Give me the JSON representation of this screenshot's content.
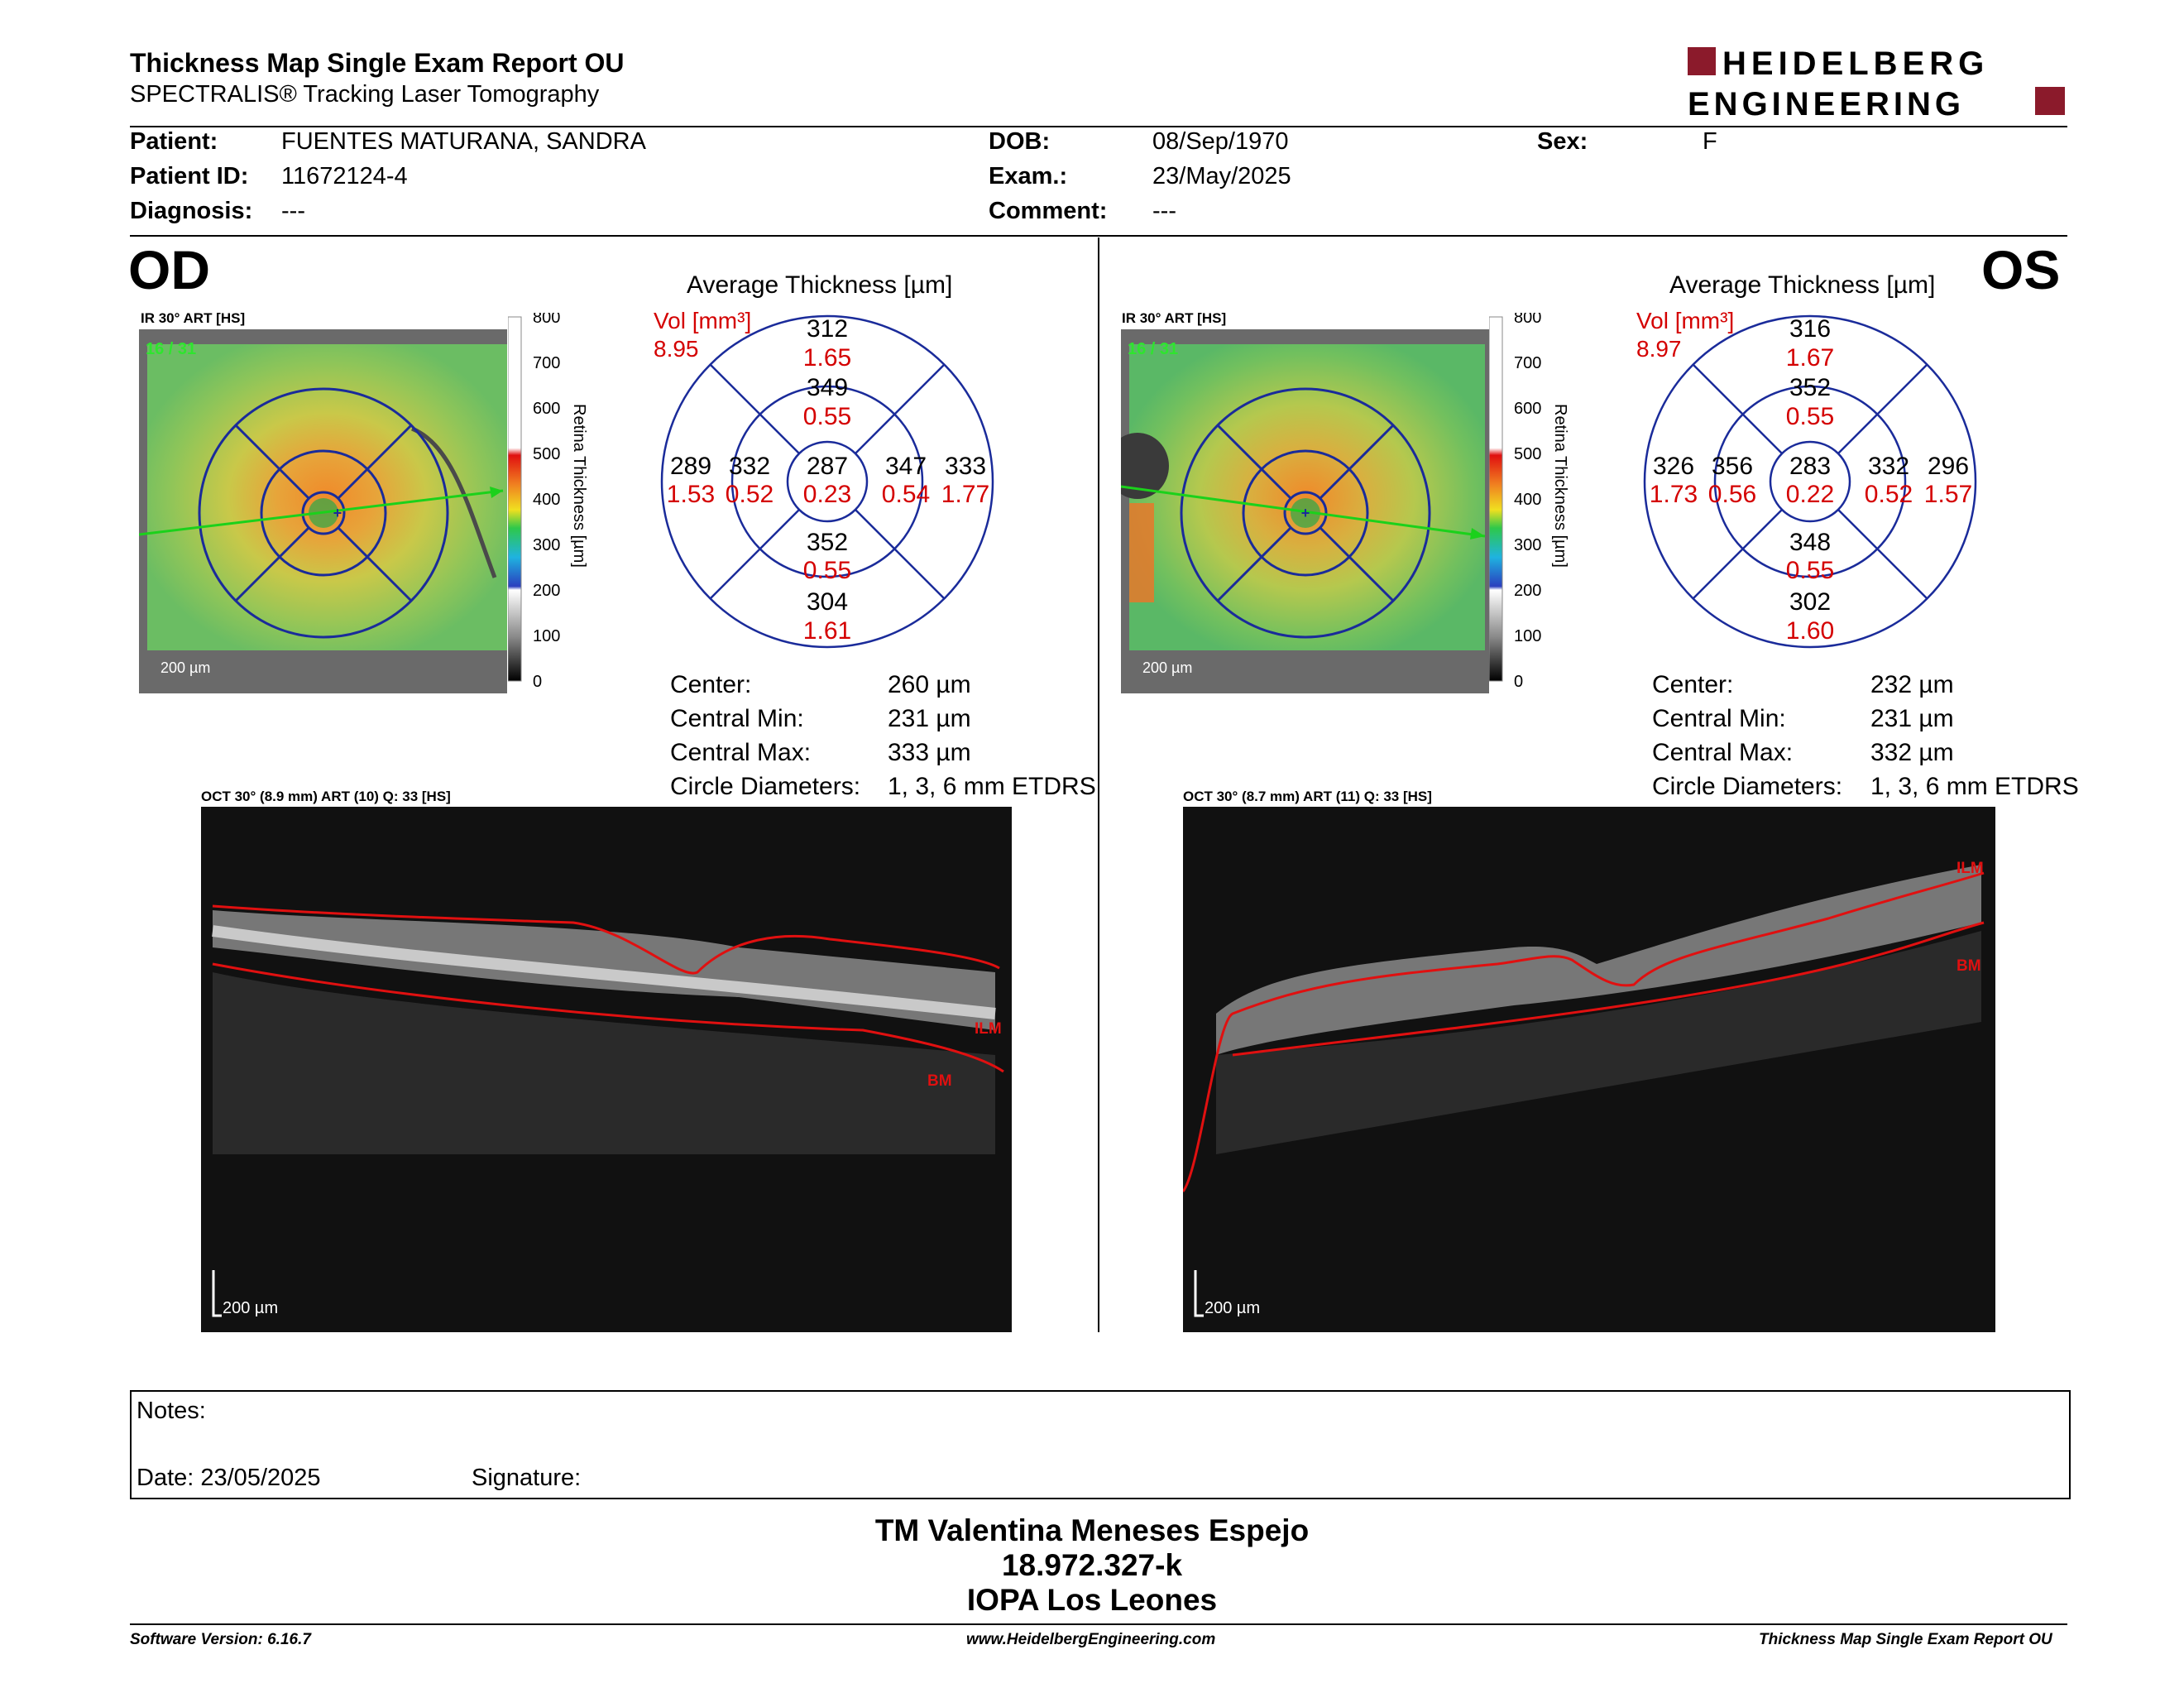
{
  "header": {
    "title": "Thickness Map Single Exam Report OU",
    "subtitle": "SPECTRALIS® Tracking Laser Tomography",
    "logo_line1": "HEIDELBERG",
    "logo_line2": "ENGINEERING",
    "logo_color": "#8b1a2b"
  },
  "patient": {
    "patient_label": "Patient:",
    "patient_value": "FUENTES MATURANA, SANDRA",
    "id_label": "Patient ID:",
    "id_value": "11672124-4",
    "diag_label": "Diagnosis:",
    "diag_value": "---",
    "dob_label": "DOB:",
    "dob_value": "08/Sep/1970",
    "exam_label": "Exam.:",
    "exam_value": "23/May/2025",
    "comment_label": "Comment:",
    "comment_value": "---",
    "sex_label": "Sex:",
    "sex_value": "F"
  },
  "od": {
    "eye": "OD",
    "ir_label": "IR 30° ART [HS]",
    "ir_count": "16 / 31",
    "scale": "200 µm",
    "colorbar_ticks": [
      "800",
      "700",
      "600",
      "500",
      "400",
      "300",
      "200",
      "100",
      "0"
    ],
    "colorbar_title": "Retina Thickness [µm]",
    "avg_title": "Average Thickness [µm]",
    "vol_label": "Vol [mm³]",
    "vol_value": "8.95",
    "etdrs": {
      "center": {
        "t": "287",
        "v": "0.23"
      },
      "inner_sup": {
        "t": "349",
        "v": "0.55"
      },
      "inner_inf": {
        "t": "352",
        "v": "0.55"
      },
      "inner_left": {
        "t": "332",
        "v": "0.52"
      },
      "inner_right": {
        "t": "347",
        "v": "0.54"
      },
      "outer_sup": {
        "t": "312",
        "v": "1.65"
      },
      "outer_inf": {
        "t": "304",
        "v": "1.61"
      },
      "outer_left": {
        "t": "289",
        "v": "1.53"
      },
      "outer_right": {
        "t": "333",
        "v": "1.77"
      }
    },
    "stats": [
      {
        "label": "Center:",
        "value": "260 µm"
      },
      {
        "label": "Central Min:",
        "value": "231 µm"
      },
      {
        "label": "Central Max:",
        "value": "333 µm"
      },
      {
        "label": "Circle Diameters:",
        "value": "1, 3, 6 mm ETDRS"
      }
    ],
    "oct_label": "OCT 30° (8.9 mm) ART (10) Q: 33 [HS]",
    "oct_scale": "200 µm",
    "ilm": "ILM",
    "bm": "BM"
  },
  "os": {
    "eye": "OS",
    "ir_label": "IR 30° ART [HS]",
    "ir_count": "16 / 31",
    "scale": "200 µm",
    "colorbar_ticks": [
      "800",
      "700",
      "600",
      "500",
      "400",
      "300",
      "200",
      "100",
      "0"
    ],
    "colorbar_title": "Retina Thickness [µm]",
    "avg_title": "Average Thickness [µm]",
    "vol_label": "Vol [mm³]",
    "vol_value": "8.97",
    "etdrs": {
      "center": {
        "t": "283",
        "v": "0.22"
      },
      "inner_sup": {
        "t": "352",
        "v": "0.55"
      },
      "inner_inf": {
        "t": "348",
        "v": "0.55"
      },
      "inner_left": {
        "t": "356",
        "v": "0.56"
      },
      "inner_right": {
        "t": "332",
        "v": "0.52"
      },
      "outer_sup": {
        "t": "316",
        "v": "1.67"
      },
      "outer_inf": {
        "t": "302",
        "v": "1.60"
      },
      "outer_left": {
        "t": "326",
        "v": "1.73"
      },
      "outer_right": {
        "t": "296",
        "v": "1.57"
      }
    },
    "stats": [
      {
        "label": "Center:",
        "value": "232 µm"
      },
      {
        "label": "Central Min:",
        "value": "231 µm"
      },
      {
        "label": "Central Max:",
        "value": "332 µm"
      },
      {
        "label": "Circle Diameters:",
        "value": "1, 3, 6 mm ETDRS"
      }
    ],
    "oct_label": "OCT 30° (8.7 mm) ART (11) Q: 33 [HS]",
    "oct_scale": "200 µm",
    "ilm": "ILM",
    "bm": "BM"
  },
  "notes": {
    "notes_label": "Notes:",
    "date_label": "Date: 23/05/2025",
    "signature_label": "Signature:"
  },
  "signer": {
    "name": "TM Valentina Meneses Espejo",
    "rut": "18.972.327-k",
    "org": "IOPA Los Leones"
  },
  "footer": {
    "software": "Software Version: 6.16.7",
    "website": "www.HeidelbergEngineering.com",
    "report": "Thickness Map Single Exam Report OU"
  }
}
